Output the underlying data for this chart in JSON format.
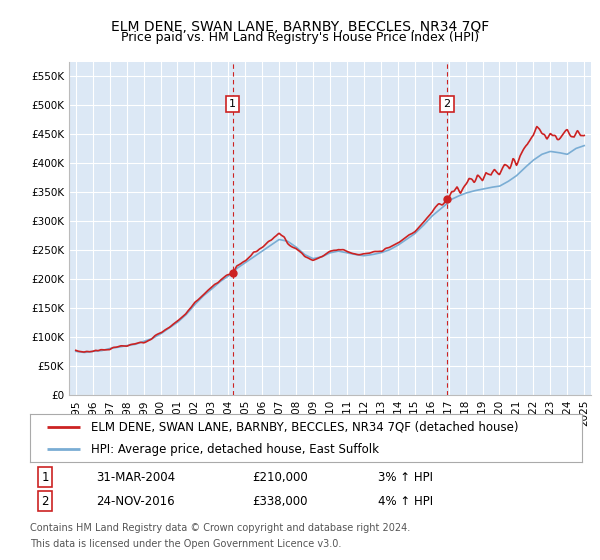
{
  "title": "ELM DENE, SWAN LANE, BARNBY, BECCLES, NR34 7QF",
  "subtitle": "Price paid vs. HM Land Registry's House Price Index (HPI)",
  "ylim": [
    0,
    575000
  ],
  "yticks": [
    0,
    50000,
    100000,
    150000,
    200000,
    250000,
    300000,
    350000,
    400000,
    450000,
    500000,
    550000
  ],
  "plot_bg": "#dce8f5",
  "grid_color": "#ffffff",
  "hpi_color": "#7aadd4",
  "price_color": "#cc2222",
  "sale1_year": 2004.25,
  "sale1_price": 210000,
  "sale1_date": "31-MAR-2004",
  "sale1_hpi_pct": "3%",
  "sale2_year": 2016.9,
  "sale2_price": 338000,
  "sale2_date": "24-NOV-2016",
  "sale2_hpi_pct": "4%",
  "legend_line1": "ELM DENE, SWAN LANE, BARNBY, BECCLES, NR34 7QF (detached house)",
  "legend_line2": "HPI: Average price, detached house, East Suffolk",
  "footer1": "Contains HM Land Registry data © Crown copyright and database right 2024.",
  "footer2": "This data is licensed under the Open Government Licence v3.0.",
  "hpi_keypoints": [
    [
      1995.0,
      75000
    ],
    [
      1995.5,
      73000
    ],
    [
      1996.0,
      75000
    ],
    [
      1996.5,
      76000
    ],
    [
      1997.0,
      80000
    ],
    [
      1997.5,
      82000
    ],
    [
      1998.0,
      85000
    ],
    [
      1998.5,
      87000
    ],
    [
      1999.0,
      92000
    ],
    [
      1999.5,
      97000
    ],
    [
      2000.0,
      105000
    ],
    [
      2000.5,
      115000
    ],
    [
      2001.0,
      125000
    ],
    [
      2001.5,
      138000
    ],
    [
      2002.0,
      155000
    ],
    [
      2002.5,
      170000
    ],
    [
      2003.0,
      182000
    ],
    [
      2003.5,
      195000
    ],
    [
      2004.0,
      205000
    ],
    [
      2004.25,
      210000
    ],
    [
      2004.5,
      218000
    ],
    [
      2005.0,
      228000
    ],
    [
      2005.5,
      238000
    ],
    [
      2006.0,
      248000
    ],
    [
      2006.5,
      258000
    ],
    [
      2007.0,
      268000
    ],
    [
      2007.5,
      265000
    ],
    [
      2008.0,
      255000
    ],
    [
      2008.5,
      242000
    ],
    [
      2009.0,
      235000
    ],
    [
      2009.5,
      238000
    ],
    [
      2010.0,
      245000
    ],
    [
      2010.5,
      248000
    ],
    [
      2011.0,
      245000
    ],
    [
      2011.5,
      242000
    ],
    [
      2012.0,
      240000
    ],
    [
      2012.5,
      242000
    ],
    [
      2013.0,
      245000
    ],
    [
      2013.5,
      250000
    ],
    [
      2014.0,
      258000
    ],
    [
      2014.5,
      268000
    ],
    [
      2015.0,
      278000
    ],
    [
      2015.5,
      292000
    ],
    [
      2016.0,
      308000
    ],
    [
      2016.5,
      320000
    ],
    [
      2016.9,
      330000
    ],
    [
      2017.0,
      335000
    ],
    [
      2017.5,
      342000
    ],
    [
      2018.0,
      348000
    ],
    [
      2018.5,
      352000
    ],
    [
      2019.0,
      355000
    ],
    [
      2019.5,
      358000
    ],
    [
      2020.0,
      360000
    ],
    [
      2020.5,
      368000
    ],
    [
      2021.0,
      378000
    ],
    [
      2021.5,
      392000
    ],
    [
      2022.0,
      405000
    ],
    [
      2022.5,
      415000
    ],
    [
      2023.0,
      420000
    ],
    [
      2023.5,
      418000
    ],
    [
      2024.0,
      415000
    ],
    [
      2024.5,
      425000
    ],
    [
      2025.0,
      430000
    ]
  ],
  "price_extra_keypoints": [
    [
      1995.0,
      76000
    ],
    [
      1995.5,
      74000
    ],
    [
      1996.0,
      76000
    ],
    [
      1996.5,
      77000
    ],
    [
      1997.0,
      79000
    ],
    [
      1997.5,
      83000
    ],
    [
      1998.0,
      84000
    ],
    [
      1998.5,
      88000
    ],
    [
      1999.0,
      91000
    ],
    [
      1999.5,
      98000
    ],
    [
      2000.0,
      107000
    ],
    [
      2000.5,
      116000
    ],
    [
      2001.0,
      128000
    ],
    [
      2001.5,
      140000
    ],
    [
      2002.0,
      158000
    ],
    [
      2002.5,
      172000
    ],
    [
      2003.0,
      185000
    ],
    [
      2003.5,
      198000
    ],
    [
      2004.0,
      207000
    ],
    [
      2004.25,
      210000
    ],
    [
      2004.5,
      222000
    ],
    [
      2005.0,
      232000
    ],
    [
      2005.5,
      245000
    ],
    [
      2006.0,
      255000
    ],
    [
      2006.5,
      268000
    ],
    [
      2007.0,
      278000
    ],
    [
      2007.3,
      272000
    ],
    [
      2007.5,
      262000
    ],
    [
      2008.0,
      252000
    ],
    [
      2008.5,
      240000
    ],
    [
      2009.0,
      232000
    ],
    [
      2009.5,
      238000
    ],
    [
      2010.0,
      248000
    ],
    [
      2010.5,
      252000
    ],
    [
      2011.0,
      248000
    ],
    [
      2011.5,
      243000
    ],
    [
      2012.0,
      242000
    ],
    [
      2012.5,
      245000
    ],
    [
      2013.0,
      248000
    ],
    [
      2013.5,
      254000
    ],
    [
      2014.0,
      262000
    ],
    [
      2014.5,
      272000
    ],
    [
      2015.0,
      282000
    ],
    [
      2015.5,
      298000
    ],
    [
      2016.0,
      315000
    ],
    [
      2016.5,
      328000
    ],
    [
      2016.9,
      338000
    ],
    [
      2017.0,
      340000
    ],
    [
      2017.2,
      352000
    ],
    [
      2017.5,
      358000
    ],
    [
      2017.7,
      348000
    ],
    [
      2018.0,
      362000
    ],
    [
      2018.2,
      375000
    ],
    [
      2018.5,
      368000
    ],
    [
      2018.7,
      380000
    ],
    [
      2019.0,
      370000
    ],
    [
      2019.2,
      385000
    ],
    [
      2019.5,
      378000
    ],
    [
      2019.7,
      392000
    ],
    [
      2020.0,
      382000
    ],
    [
      2020.3,
      395000
    ],
    [
      2020.6,
      388000
    ],
    [
      2020.8,
      405000
    ],
    [
      2021.0,
      398000
    ],
    [
      2021.2,
      415000
    ],
    [
      2021.5,
      425000
    ],
    [
      2021.7,
      438000
    ],
    [
      2022.0,
      448000
    ],
    [
      2022.2,
      462000
    ],
    [
      2022.4,
      455000
    ],
    [
      2022.6,
      448000
    ],
    [
      2022.8,
      442000
    ],
    [
      2023.0,
      450000
    ],
    [
      2023.2,
      445000
    ],
    [
      2023.4,
      438000
    ],
    [
      2023.6,
      442000
    ],
    [
      2023.8,
      448000
    ],
    [
      2024.0,
      455000
    ],
    [
      2024.2,
      448000
    ],
    [
      2024.4,
      442000
    ],
    [
      2024.6,
      450000
    ],
    [
      2024.8,
      445000
    ],
    [
      2025.0,
      450000
    ]
  ]
}
